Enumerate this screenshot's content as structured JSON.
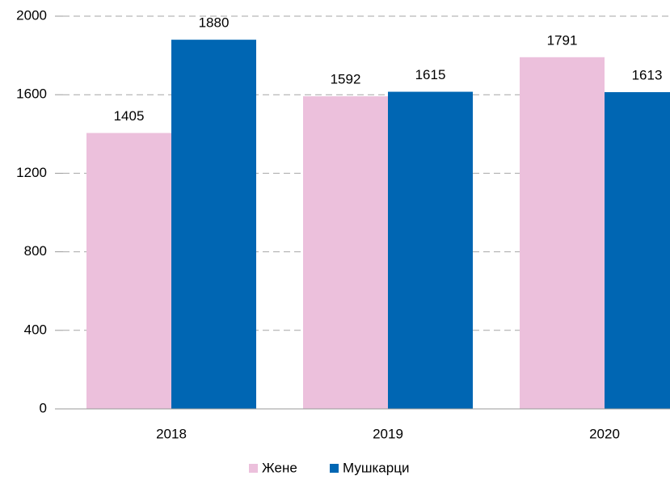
{
  "chart_data": {
    "type": "bar",
    "categories": [
      "2018",
      "2019",
      "2020"
    ],
    "series": [
      {
        "name": "Жене",
        "color": "#ecc0dc",
        "values": [
          1405,
          1592,
          1791
        ]
      },
      {
        "name": "Мушкарци",
        "color": "#0066b3",
        "values": [
          1880,
          1615,
          1613
        ]
      }
    ],
    "ylim": [
      0,
      2000
    ],
    "yticks": [
      0,
      400,
      800,
      1200,
      1600,
      2000
    ],
    "grid": true,
    "legend": "bottom"
  }
}
